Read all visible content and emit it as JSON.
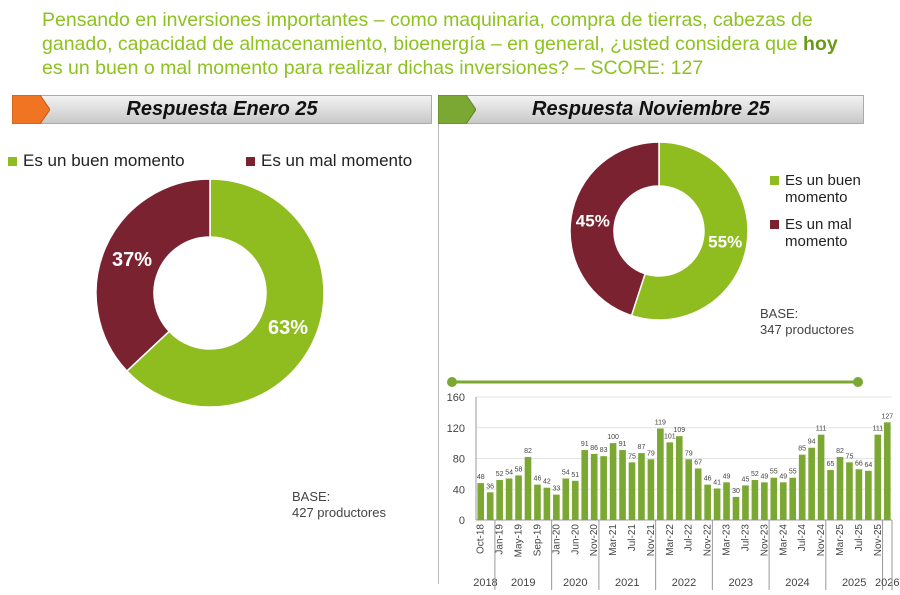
{
  "title": {
    "pre": "Pensando en inversiones importantes – como maquinaria, compra de tierras, cabezas de ganado, capacidad de almacenamiento, bioenergía – en general, ¿usted considera que ",
    "bold": "hoy",
    "post": " es un buen o mal momento para realizar dichas inversiones? – SCORE: 127"
  },
  "colors": {
    "good": "#8fbc1e",
    "bad": "#7b2231",
    "bar": "#7aa832",
    "orange": "#f07422",
    "olive": "#7aa832"
  },
  "left": {
    "banner": "Respuesta Enero 25",
    "legend": [
      "Es un buen momento",
      "Es un mal momento"
    ],
    "base_label": "BASE:",
    "base_value": "427 productores"
  },
  "right": {
    "banner": "Respuesta Noviembre 25",
    "legend": [
      "Es un buen momento",
      "Es un mal momento"
    ],
    "base_label": "BASE:",
    "base_value": "347 productores"
  },
  "chart_data": [
    {
      "type": "pie",
      "donut": true,
      "title": "Respuesta Enero 25",
      "labels": [
        "Es un buen momento",
        "Es un mal momento"
      ],
      "values": [
        63,
        37
      ],
      "data_labels": [
        "63%",
        "37%"
      ]
    },
    {
      "type": "pie",
      "donut": true,
      "title": "Respuesta Noviembre 25",
      "labels": [
        "Es un buen momento",
        "Es un mal momento"
      ],
      "values": [
        55,
        45
      ],
      "data_labels": [
        "55%",
        "45%"
      ]
    },
    {
      "type": "bar",
      "ylim": [
        0,
        160
      ],
      "yticks": [
        "0",
        "40",
        "80",
        "120",
        "160"
      ],
      "values": [
        48,
        36,
        52,
        54,
        58,
        82,
        46,
        42,
        33,
        54,
        51,
        91,
        86,
        83,
        100,
        91,
        75,
        87,
        79,
        119,
        101,
        109,
        79,
        67,
        46,
        41,
        49,
        30,
        45,
        52,
        49,
        55,
        49,
        55,
        85,
        94,
        111,
        65,
        82,
        75,
        66,
        64,
        111,
        127
      ],
      "tick_labels": [
        "Oct-18",
        "Jan-19",
        "May-19",
        "Sep-19",
        "Jan-20",
        "Jun-20",
        "Nov-20",
        "Mar-21",
        "Jul-21",
        "Nov-21",
        "Mar-22",
        "Jul-22",
        "Nov-22",
        "Mar-23",
        "Jul-23",
        "Nov-23",
        "Mar-24",
        "Jul-24",
        "Nov-24",
        "Mar-25",
        "Jul-25",
        "Nov-25"
      ],
      "years": [
        {
          "label": "2018",
          "count": 2
        },
        {
          "label": "2019",
          "count": 6
        },
        {
          "label": "2020",
          "count": 5
        },
        {
          "label": "2021",
          "count": 6
        },
        {
          "label": "2022",
          "count": 6
        },
        {
          "label": "2023",
          "count": 6
        },
        {
          "label": "2024",
          "count": 6
        },
        {
          "label": "2025",
          "count": 6
        },
        {
          "label": "2026",
          "count": 1
        }
      ],
      "grid": true
    }
  ]
}
